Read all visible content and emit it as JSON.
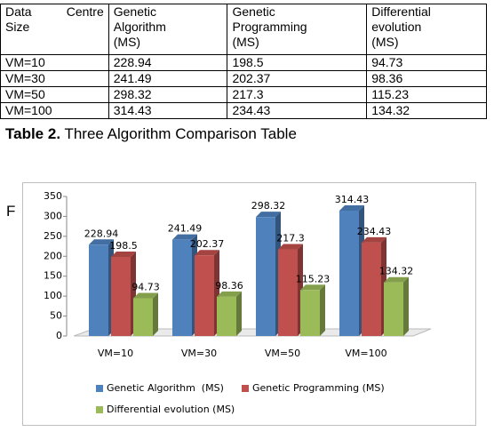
{
  "table": {
    "header": [
      [
        "Data Centre",
        "Size"
      ],
      [
        "Genetic",
        "Algorithm",
        "(MS)"
      ],
      [
        "Genetic",
        "Programming",
        "(MS)"
      ],
      [
        "Differential",
        "evolution",
        "(MS)"
      ]
    ],
    "rows": [
      [
        "VM=10",
        "228.94",
        "198.5",
        "94.73"
      ],
      [
        "VM=30",
        "241.49",
        "202.37",
        "98.36"
      ],
      [
        "VM=50",
        "298.32",
        "217.3",
        "115.23"
      ],
      [
        "VM=100",
        "314.43",
        "234.43",
        "134.32"
      ]
    ]
  },
  "caption": {
    "label": "Table 2.",
    "text": "Three Algorithm Comparison Table"
  },
  "fragment": "F",
  "chart_data": {
    "type": "bar",
    "categories": [
      "VM=10",
      "VM=30",
      "VM=50",
      "VM=100"
    ],
    "series": [
      {
        "name": "Genetic Algorithm  (MS)",
        "color": "#4f81bd",
        "values": [
          228.94,
          241.49,
          298.32,
          314.43
        ]
      },
      {
        "name": "Genetic Programming (MS)",
        "color": "#c0504d",
        "values": [
          198.5,
          202.37,
          217.3,
          234.43
        ]
      },
      {
        "name": "Differential evolution (MS)",
        "color": "#9bbb59",
        "values": [
          94.73,
          98.36,
          115.23,
          134.32
        ]
      }
    ],
    "ylim": [
      0,
      350
    ],
    "yticks": [
      0,
      50,
      100,
      150,
      200,
      250,
      300,
      350
    ],
    "legend": "bottom"
  }
}
